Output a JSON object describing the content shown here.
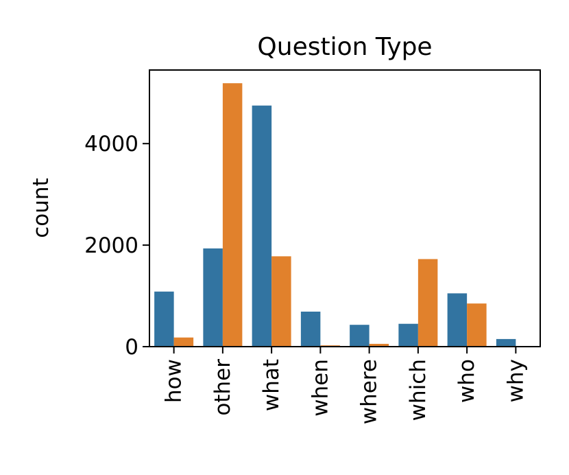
{
  "chart_data": {
    "type": "bar",
    "title": "Question Type",
    "xlabel": "",
    "ylabel": "count",
    "categories": [
      "how",
      "other",
      "what",
      "when",
      "where",
      "which",
      "who",
      "why"
    ],
    "series": [
      {
        "values": [
          1085,
          1935,
          4750,
          690,
          430,
          450,
          1050,
          150
        ],
        "color": "#3274a1"
      },
      {
        "values": [
          180,
          5190,
          1780,
          25,
          55,
          1725,
          850,
          0
        ],
        "color": "#e1812c"
      }
    ],
    "ylim": [
      0,
      5450
    ],
    "yticks": [
      0,
      2000,
      4000
    ],
    "grid": false,
    "legend": "none"
  }
}
